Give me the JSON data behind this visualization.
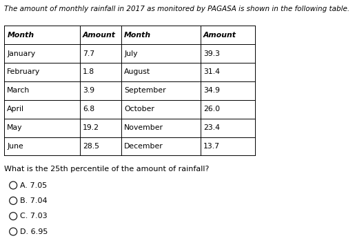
{
  "title": "The amount of monthly rainfall in 2017 as monitored by PAGASA is shown in the following table.",
  "table_headers": [
    "Month",
    "Amount",
    "Month",
    "Amount"
  ],
  "table_rows": [
    [
      "January",
      "7.7",
      "July",
      "39.3"
    ],
    [
      "February",
      "1.8",
      "August",
      "31.4"
    ],
    [
      "March",
      "3.9",
      "September",
      "34.9"
    ],
    [
      "April",
      "6.8",
      "October",
      "26.0"
    ],
    [
      "May",
      "19.2",
      "November",
      "23.4"
    ],
    [
      "June",
      "28.5",
      "December",
      "13.7"
    ]
  ],
  "question": "What is the 25th percentile of the amount of rainfall?",
  "options": [
    "A. 7.05",
    "B. 7.04",
    "C. 7.03",
    "D. 6.95"
  ],
  "bg_color": "#ffffff",
  "text_color": "#000000",
  "title_fontsize": 7.5,
  "table_fontsize": 7.8,
  "question_fontsize": 8.0,
  "option_fontsize": 8.0
}
